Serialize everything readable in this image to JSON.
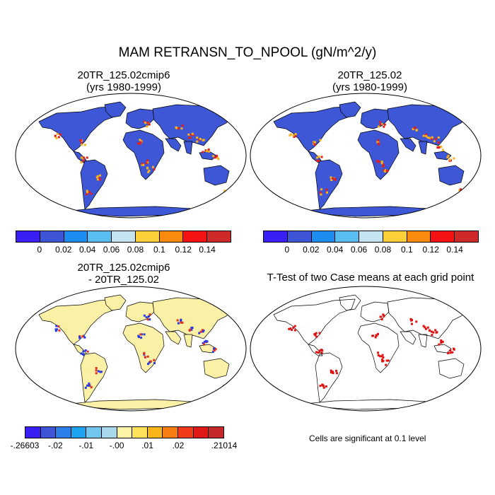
{
  "title": "MAM RETRANSN_TO_NPOOL (gN/m^2/y)",
  "panels": [
    {
      "title_line1": "20TR_125.02cmip6",
      "title_line2": "(yrs 1980-1999)"
    },
    {
      "title_line1": "20TR_125.02",
      "title_line2": "(yrs 1980-1999)"
    },
    {
      "title_line1": "20TR_125.02cmip6",
      "title_line2": "- 20TR_125.02"
    },
    {
      "title_line1": "T-Test of two Case means at each grid point",
      "title_line2": ""
    }
  ],
  "colorbar_top": {
    "colors": [
      "#3a1ff5",
      "#3f55d8",
      "#1e8df2",
      "#58bdf0",
      "#c4e4f2",
      "#fdd03a",
      "#f98a0d",
      "#f51212",
      "#cf2a2a"
    ],
    "labels": [
      "0",
      "0.02",
      "0.04",
      "0.06",
      "0.08",
      "0.1",
      "0.12",
      "0.14"
    ]
  },
  "colorbar_diff": {
    "colors": [
      "#3a1ff5",
      "#3f55d8",
      "#2c7fe9",
      "#1ea3f0",
      "#72c6ee",
      "#a9d7ec",
      "#fbf3a5",
      "#fde25a",
      "#f8b619",
      "#f87d12",
      "#f03a1a",
      "#df1818",
      "#c42828"
    ],
    "labels": [
      "-.26603",
      "-.02",
      "-.01",
      "-.00",
      ".01",
      ".02",
      ".21014"
    ]
  },
  "note": "Cells are significant at 0.1 level",
  "map_colors": {
    "ocean": "#ffffff",
    "land_top": "#3e57d6",
    "land_diff": "#fbf1a6",
    "hot": "#e02020",
    "warm": "#f9b21c",
    "sig": "#e01010"
  }
}
